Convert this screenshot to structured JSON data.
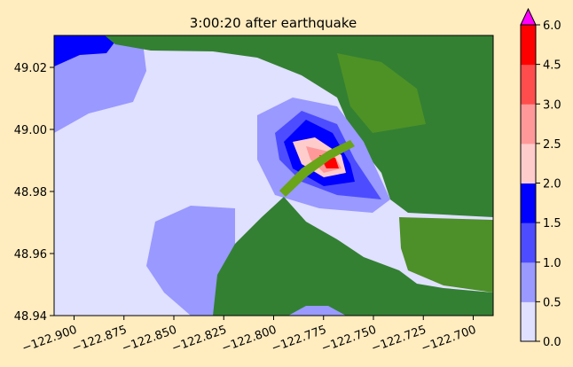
{
  "title": "3:00:20 after earthquake",
  "chart_data": {
    "type": "heatmap",
    "title": "3:00:20 after earthquake",
    "xlim": [
      -122.91,
      -122.69
    ],
    "ylim": [
      48.94,
      49.03
    ],
    "x_ticks": [
      "−122.900",
      "−122.875",
      "−122.850",
      "−122.825",
      "−122.800",
      "−122.775",
      "−122.750",
      "−122.725",
      "−122.700"
    ],
    "x_tick_values": [
      -122.9,
      -122.875,
      -122.85,
      -122.825,
      -122.8,
      -122.775,
      -122.75,
      -122.725,
      -122.7
    ],
    "y_ticks": [
      "48.94",
      "48.96",
      "48.98",
      "49.00",
      "49.02"
    ],
    "y_tick_values": [
      48.94,
      48.96,
      48.98,
      49.0,
      49.02
    ],
    "colorbar": {
      "ticks": [
        "0.0",
        "0.5",
        "1.0",
        "1.5",
        "2.0",
        "2.5",
        "3.0",
        "4.5",
        "6.0"
      ],
      "levels": [
        0.0,
        0.5,
        1.0,
        1.5,
        2.0,
        2.5,
        3.0,
        4.5,
        6.0
      ],
      "colors": [
        "#e0e0ff",
        "#9999ff",
        "#4d4dff",
        "#0000ff",
        "#ffcccc",
        "#ff9999",
        "#ff4d4d",
        "#ff0000"
      ],
      "extend_color": "#ff00ff",
      "extend": "max"
    },
    "colors": {
      "water_low": "#e0e0ff",
      "land_dark": "#338033",
      "land_light": "#6aa418",
      "background": "#ffecbf"
    }
  }
}
